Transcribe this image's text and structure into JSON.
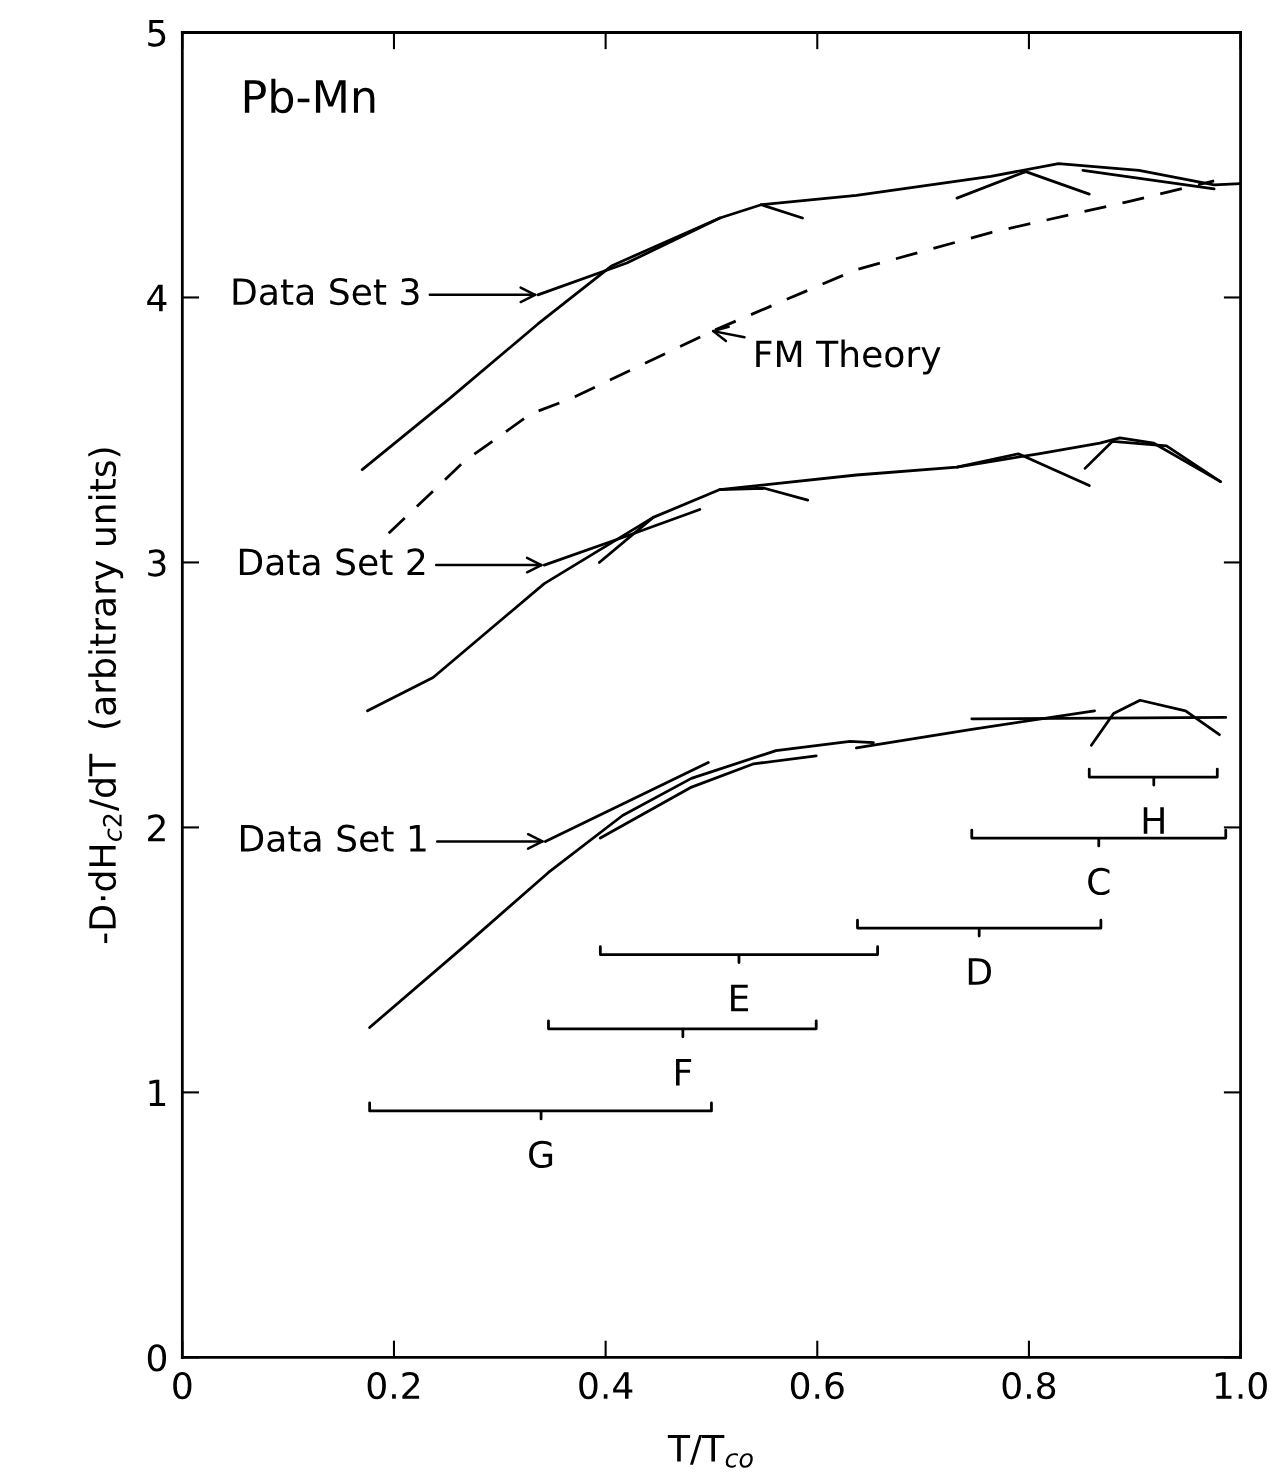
{
  "chart_data": {
    "type": "line",
    "title": "Pb-Mn",
    "xlabel": "T/T$_{co}$",
    "ylabel": "-D·dH$_{c2}$/dT  (arbitrary units)",
    "xlim": [
      0,
      1.0
    ],
    "ylim": [
      0,
      5
    ],
    "xticks": [
      0,
      0.2,
      0.4,
      0.6,
      0.8,
      {
        "value": 1.0,
        "label": "1.0"
      }
    ],
    "yticks": [
      0,
      1,
      2,
      3,
      4,
      5
    ],
    "grid": false,
    "legend": false,
    "marker": "none",
    "series": [
      {
        "color": "#000000",
        "x": [
          0.177,
          0.266,
          0.346,
          0.416,
          0.481,
          0.561,
          0.631,
          0.653
        ],
        "values": [
          1.245,
          1.55,
          1.83,
          2.045,
          2.185,
          2.29,
          2.325,
          2.32
        ]
      },
      {
        "color": "#000000",
        "x": [
          0.637,
          0.746,
          0.862
        ],
        "values": [
          2.3,
          2.37,
          2.44
        ]
      },
      {
        "color": "#000000",
        "x": [
          0.746,
          0.986
        ],
        "values": [
          2.41,
          2.415
        ]
      },
      {
        "color": "#000000",
        "x": [
          0.859,
          0.88,
          0.905,
          0.948,
          0.98
        ],
        "values": [
          2.31,
          2.43,
          2.48,
          2.44,
          2.35
        ]
      },
      {
        "color": "#000000",
        "x": [
          0.343,
          0.497
        ],
        "values": [
          1.947,
          2.245
        ]
      },
      {
        "color": "#000000",
        "x": [
          0.395,
          0.48,
          0.54,
          0.599
        ],
        "values": [
          1.96,
          2.15,
          2.24,
          2.27
        ]
      },
      {
        "color": "#000000",
        "x": [
          0.175,
          0.237,
          0.342,
          0.445,
          0.508,
          0.637,
          0.732,
          0.809,
          0.867,
          0.886,
          0.918,
          0.981
        ],
        "values": [
          2.44,
          2.566,
          2.92,
          3.17,
          3.275,
          3.33,
          3.36,
          3.41,
          3.45,
          3.47,
          3.45,
          3.305
        ]
      },
      {
        "color": "#000000",
        "x": [
          0.342,
          0.42,
          0.489
        ],
        "values": [
          2.99,
          3.1,
          3.2
        ]
      },
      {
        "color": "#000000",
        "x": [
          0.394,
          0.445
        ],
        "values": [
          3.0,
          3.17
        ]
      },
      {
        "color": "#000000",
        "x": [
          0.508,
          0.55,
          0.591
        ],
        "values": [
          3.275,
          3.28,
          3.235
        ]
      },
      {
        "color": "#000000",
        "x": [
          0.732,
          0.79,
          0.857
        ],
        "values": [
          3.36,
          3.41,
          3.29
        ]
      },
      {
        "color": "#000000",
        "x": [
          0.853,
          0.879,
          0.93,
          0.981
        ],
        "values": [
          3.355,
          3.457,
          3.44,
          3.305
        ]
      },
      {
        "color": "#000000",
        "x": [
          0.17,
          0.253,
          0.336,
          0.406,
          0.508,
          0.547,
          0.637,
          0.764,
          0.828,
          0.904,
          0.975,
          1.0
        ],
        "values": [
          3.35,
          3.62,
          3.9,
          4.12,
          4.3,
          4.35,
          4.385,
          4.457,
          4.505,
          4.48,
          4.425,
          4.43
        ]
      },
      {
        "color": "#000000",
        "x": [
          0.336,
          0.42,
          0.508
        ],
        "values": [
          4.01,
          4.13,
          4.3
        ]
      },
      {
        "color": "#000000",
        "x": [
          0.547,
          0.586
        ],
        "values": [
          4.35,
          4.3
        ]
      },
      {
        "color": "#000000",
        "x": [
          0.732,
          0.797,
          0.857
        ],
        "values": [
          4.375,
          4.475,
          4.39
        ]
      },
      {
        "color": "#000000",
        "x": [
          0.851,
          0.975
        ],
        "values": [
          4.48,
          4.41
        ]
      },
      {
        "color": "#000000",
        "line_style": "dashed",
        "x": [
          0.195,
          0.266,
          0.329,
          0.368,
          0.502,
          0.637,
          0.764,
          0.892,
          0.975
        ],
        "values": [
          3.11,
          3.38,
          3.56,
          3.62,
          3.875,
          4.105,
          4.245,
          4.36,
          4.44
        ]
      },
      {
        "color": "#000000",
        "x": [
          0.857,
          0.857,
          0.918,
          0.918,
          0.918,
          0.978,
          0.978
        ],
        "values": [
          2.22,
          2.19,
          2.19,
          2.16,
          2.19,
          2.19,
          2.22
        ]
      },
      {
        "color": "#000000",
        "x": [
          0.746,
          0.746,
          0.866,
          0.866,
          0.866,
          0.986,
          0.986
        ],
        "values": [
          1.99,
          1.96,
          1.96,
          1.93,
          1.96,
          1.96,
          1.99
        ]
      },
      {
        "color": "#000000",
        "x": [
          0.638,
          0.638,
          0.753,
          0.753,
          0.753,
          0.868,
          0.868
        ],
        "values": [
          1.65,
          1.62,
          1.62,
          1.59,
          1.62,
          1.62,
          1.65
        ]
      },
      {
        "color": "#000000",
        "x": [
          0.395,
          0.395,
          0.526,
          0.526,
          0.526,
          0.657,
          0.657
        ],
        "values": [
          1.55,
          1.52,
          1.52,
          1.49,
          1.52,
          1.52,
          1.55
        ]
      },
      {
        "color": "#000000",
        "x": [
          0.346,
          0.346,
          0.473,
          0.473,
          0.473,
          0.599,
          0.599
        ],
        "values": [
          1.27,
          1.24,
          1.24,
          1.21,
          1.24,
          1.24,
          1.27
        ]
      },
      {
        "color": "#000000",
        "x": [
          0.177,
          0.177,
          0.339,
          0.339,
          0.339,
          0.5,
          0.5
        ],
        "values": [
          0.96,
          0.93,
          0.93,
          0.9,
          0.93,
          0.93,
          0.96
        ]
      }
    ],
    "annotations": [
      {
        "text": "H",
        "x": 0.918,
        "y": 2.16
      },
      {
        "text": "C",
        "x": 0.866,
        "y": 1.93
      },
      {
        "text": "D",
        "x": 0.753,
        "y": 1.59
      },
      {
        "text": "E",
        "x": 0.526,
        "y": 1.49
      },
      {
        "text": "F",
        "x": 0.473,
        "y": 1.21
      },
      {
        "text": "G",
        "x": 0.339,
        "y": 0.9
      },
      {
        "text": "Data Set 3",
        "x": 0.336,
        "y": 4.01
      },
      {
        "text": "Data Set 2",
        "x": 0.342,
        "y": 2.99
      },
      {
        "text": "Data Set 1",
        "x": 0.343,
        "y": 1.947
      },
      {
        "text": "FM Theory",
        "x": 0.499,
        "y": 3.875
      }
    ]
  }
}
